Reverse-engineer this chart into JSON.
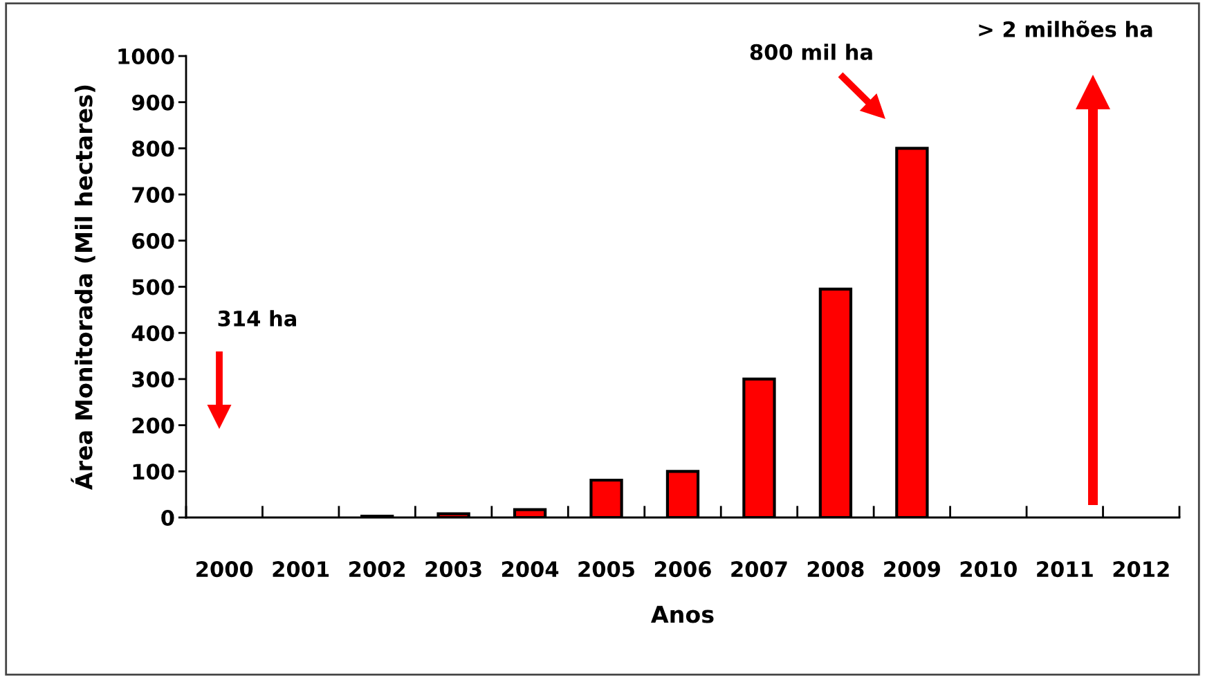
{
  "chart_data": {
    "type": "bar",
    "categories": [
      "2000",
      "2001",
      "2002",
      "2003",
      "2004",
      "2005",
      "2006",
      "2007",
      "2008",
      "2009",
      "2010",
      "2011",
      "2012"
    ],
    "values": [
      null,
      null,
      3,
      8,
      17,
      81,
      100,
      300,
      495,
      800,
      null,
      null,
      null
    ],
    "color": "#ff0000",
    "xlabel": "Anos",
    "ylabel": "Área Monitorada (Mil hectares)",
    "ylim": [
      0,
      1000
    ],
    "yticks": [
      0,
      100,
      200,
      300,
      400,
      500,
      600,
      700,
      800,
      900,
      1000
    ],
    "grid": false,
    "legend": false,
    "annotations": [
      "314 ha",
      "800 mil ha",
      "> 2 milhões ha"
    ]
  }
}
